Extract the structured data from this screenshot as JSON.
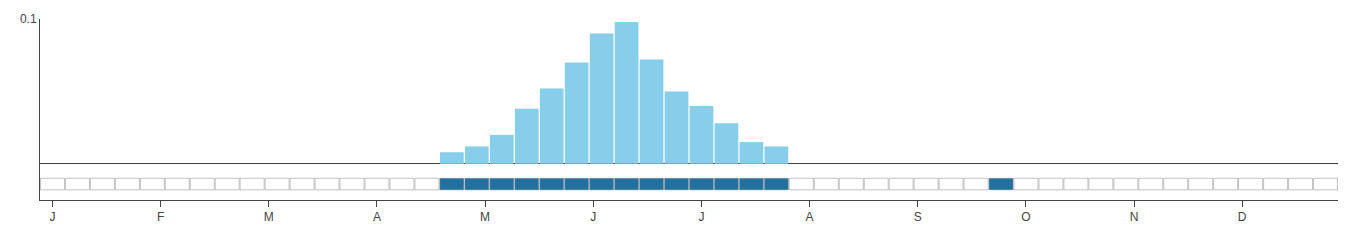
{
  "chart_data": {
    "type": "bar",
    "x": [
      0,
      1,
      2,
      3,
      4,
      5,
      6,
      7,
      8,
      9,
      10,
      11,
      12,
      13,
      14,
      15,
      16,
      17,
      18,
      19,
      20,
      21,
      22,
      23,
      24,
      25,
      26,
      27,
      28,
      29,
      30,
      31,
      32,
      33,
      34,
      35,
      36,
      37,
      38,
      39,
      40,
      41,
      42,
      43,
      44,
      45,
      46,
      47,
      48,
      49,
      50,
      51
    ],
    "series": [
      {
        "type": "bar",
        "color": "#87CEEB",
        "values": [
          0,
          0,
          0,
          0,
          0,
          0,
          0,
          0,
          0,
          0,
          0,
          0,
          0,
          0,
          0,
          0,
          0.008,
          0.012,
          0.02,
          0.038,
          0.052,
          0.07,
          0.09,
          0.098,
          0.072,
          0.05,
          0.04,
          0.028,
          0.015,
          0.012,
          0,
          0,
          0,
          0,
          0,
          0,
          0,
          0,
          0,
          0,
          0,
          0,
          0,
          0,
          0,
          0,
          0,
          0,
          0,
          0,
          0,
          0
        ]
      },
      {
        "type": "strip",
        "colors": [
          "#ffffff",
          "#ffffff",
          "#ffffff",
          "#ffffff",
          "#ffffff",
          "#ffffff",
          "#ffffff",
          "#ffffff",
          "#ffffff",
          "#ffffff",
          "#ffffff",
          "#ffffff",
          "#ffffff",
          "#ffffff",
          "#ffffff",
          "#ffffff",
          "#2171A0",
          "#2171A0",
          "#2171A0",
          "#2171A0",
          "#2171A0",
          "#2171A0",
          "#2171A0",
          "#2171A0",
          "#2171A0",
          "#2171A0",
          "#2171A0",
          "#2171A0",
          "#2171A0",
          "#2171A0",
          "#ffffff",
          "#ffffff",
          "#ffffff",
          "#ffffff",
          "#ffffff",
          "#ffffff",
          "#ffffff",
          "#ffffff",
          "#2171A0",
          "#ffffff",
          "#ffffff",
          "#ffffff",
          "#ffffff",
          "#ffffff",
          "#ffffff",
          "#ffffff",
          "#ffffff",
          "#ffffff",
          "#ffffff",
          "#ffffff",
          "#ffffff",
          "#ffffff"
        ]
      }
    ],
    "xlim": [
      -0.5,
      51.5
    ],
    "xticks": [
      {
        "value": 0,
        "label": "J"
      },
      {
        "value": 4.33,
        "label": "F"
      },
      {
        "value": 8.66,
        "label": "M"
      },
      {
        "value": 13,
        "label": "A"
      },
      {
        "value": 17.33,
        "label": "M"
      },
      {
        "value": 21.66,
        "label": "J"
      },
      {
        "value": 26,
        "label": "J"
      },
      {
        "value": 30.33,
        "label": "A"
      },
      {
        "value": 34.66,
        "label": "S"
      },
      {
        "value": 39,
        "label": "O"
      },
      {
        "value": 43.33,
        "label": "N"
      },
      {
        "value": 47.66,
        "label": "D"
      }
    ],
    "ylim": [
      -0.025,
      0.1
    ],
    "yticks": [
      0.1
    ],
    "grid": false
  }
}
